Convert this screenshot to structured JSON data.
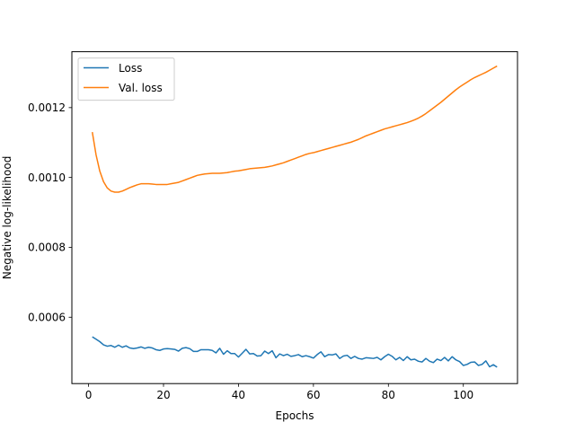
{
  "chart_data": {
    "type": "line",
    "title": "",
    "xlabel": "Epochs",
    "ylabel": "Negative log-likelihood",
    "xlim": [
      -4.45,
      114.45
    ],
    "ylim": [
      0.00041,
      0.00136
    ],
    "xticks": [
      0,
      20,
      40,
      60,
      80,
      100
    ],
    "xtick_labels": [
      "0",
      "20",
      "40",
      "60",
      "80",
      "100"
    ],
    "yticks": [
      0.0006,
      0.0008,
      0.001,
      0.0012
    ],
    "ytick_labels": [
      "0.0006",
      "0.0008",
      "0.0010",
      "0.0012"
    ],
    "grid": false,
    "legend_position": "top-left",
    "series": [
      {
        "name": "Loss",
        "color": "#1f77b4",
        "x": [
          1,
          2,
          3,
          4,
          5,
          6,
          7,
          8,
          9,
          10,
          11,
          12,
          13,
          14,
          15,
          16,
          17,
          18,
          19,
          20,
          21,
          22,
          23,
          24,
          25,
          26,
          27,
          28,
          29,
          30,
          31,
          32,
          33,
          34,
          35,
          36,
          37,
          38,
          39,
          40,
          41,
          42,
          43,
          44,
          45,
          46,
          47,
          48,
          49,
          50,
          51,
          52,
          53,
          54,
          55,
          56,
          57,
          58,
          59,
          60,
          61,
          62,
          63,
          64,
          65,
          66,
          67,
          68,
          69,
          70,
          71,
          72,
          73,
          74,
          75,
          76,
          77,
          78,
          79,
          80,
          81,
          82,
          83,
          84,
          85,
          86,
          87,
          88,
          89,
          90,
          91,
          92,
          93,
          94,
          95,
          96,
          97,
          98,
          99,
          100,
          101,
          102,
          103,
          104,
          105,
          106,
          107,
          108,
          109
        ],
        "values": [
          0.000544,
          0.000537,
          0.00053,
          0.000521,
          0.000517,
          0.000519,
          0.000514,
          0.00052,
          0.000514,
          0.000518,
          0.000512,
          0.00051,
          0.000512,
          0.000515,
          0.000511,
          0.000514,
          0.000512,
          0.000507,
          0.000505,
          0.000509,
          0.00051,
          0.000509,
          0.000508,
          0.000503,
          0.000511,
          0.000513,
          0.00051,
          0.000502,
          0.000502,
          0.000507,
          0.000507,
          0.000507,
          0.000505,
          0.000498,
          0.000511,
          0.000494,
          0.000504,
          0.000496,
          0.000496,
          0.000486,
          0.000497,
          0.000508,
          0.000495,
          0.000496,
          0.000489,
          0.00049,
          0.000503,
          0.000496,
          0.000504,
          0.000484,
          0.000495,
          0.00049,
          0.000494,
          0.000488,
          0.00049,
          0.000493,
          0.000487,
          0.00049,
          0.000487,
          0.000483,
          0.000493,
          0.000501,
          0.000487,
          0.000493,
          0.000492,
          0.000495,
          0.000482,
          0.000489,
          0.000491,
          0.000482,
          0.000488,
          0.000482,
          0.00048,
          0.000484,
          0.000483,
          0.000482,
          0.000485,
          0.000478,
          0.000487,
          0.000494,
          0.000488,
          0.000478,
          0.000485,
          0.000476,
          0.000487,
          0.000478,
          0.00048,
          0.000474,
          0.000472,
          0.000482,
          0.000474,
          0.00047,
          0.00048,
          0.000476,
          0.000485,
          0.000475,
          0.000487,
          0.000478,
          0.000473,
          0.000462,
          0.000465,
          0.000471,
          0.000472,
          0.000462,
          0.000465,
          0.000475,
          0.000458,
          0.000464,
          0.000457
        ]
      },
      {
        "name": "Val. loss",
        "color": "#ff7f0e",
        "x": [
          1,
          2,
          3,
          4,
          5,
          6,
          7,
          8,
          9,
          10,
          11,
          12,
          13,
          14,
          15,
          16,
          17,
          18,
          19,
          20,
          21,
          22,
          23,
          24,
          25,
          26,
          27,
          28,
          29,
          30,
          31,
          32,
          33,
          34,
          35,
          36,
          37,
          38,
          39,
          40,
          41,
          42,
          43,
          44,
          45,
          46,
          47,
          48,
          49,
          50,
          51,
          52,
          53,
          54,
          55,
          56,
          57,
          58,
          59,
          60,
          61,
          62,
          63,
          64,
          65,
          66,
          67,
          68,
          69,
          70,
          71,
          72,
          73,
          74,
          75,
          76,
          77,
          78,
          79,
          80,
          81,
          82,
          83,
          84,
          85,
          86,
          87,
          88,
          89,
          90,
          91,
          92,
          93,
          94,
          95,
          96,
          97,
          98,
          99,
          100,
          101,
          102,
          103,
          104,
          105,
          106,
          107,
          108,
          109
        ],
        "values": [
          0.00113,
          0.001065,
          0.001018,
          0.000988,
          0.00097,
          0.000961,
          0.000958,
          0.000958,
          0.000961,
          0.000966,
          0.000971,
          0.000975,
          0.000979,
          0.000982,
          0.000982,
          0.000982,
          0.000981,
          0.00098,
          0.00098,
          0.00098,
          0.00098,
          0.000982,
          0.000984,
          0.000986,
          0.00099,
          0.000994,
          0.000998,
          0.001002,
          0.001006,
          0.001008,
          0.00101,
          0.001011,
          0.001012,
          0.001012,
          0.001012,
          0.001013,
          0.001014,
          0.001016,
          0.001018,
          0.001019,
          0.001021,
          0.001023,
          0.001025,
          0.001026,
          0.001027,
          0.001028,
          0.001029,
          0.001031,
          0.001033,
          0.001036,
          0.001039,
          0.001042,
          0.001046,
          0.00105,
          0.001054,
          0.001058,
          0.001062,
          0.001066,
          0.001069,
          0.001071,
          0.001074,
          0.001077,
          0.00108,
          0.001083,
          0.001086,
          0.001089,
          0.001092,
          0.001095,
          0.001098,
          0.001101,
          0.001105,
          0.001109,
          0.001114,
          0.001119,
          0.001123,
          0.001127,
          0.001131,
          0.001135,
          0.001139,
          0.001142,
          0.001145,
          0.001148,
          0.001151,
          0.001154,
          0.001157,
          0.001161,
          0.001165,
          0.00117,
          0.001176,
          0.001183,
          0.001191,
          0.001199,
          0.001207,
          0.001215,
          0.001224,
          0.001233,
          0.001242,
          0.001251,
          0.001259,
          0.001266,
          0.001273,
          0.00128,
          0.001286,
          0.001291,
          0.001296,
          0.001301,
          0.001307,
          0.001313,
          0.001319
        ]
      }
    ]
  }
}
